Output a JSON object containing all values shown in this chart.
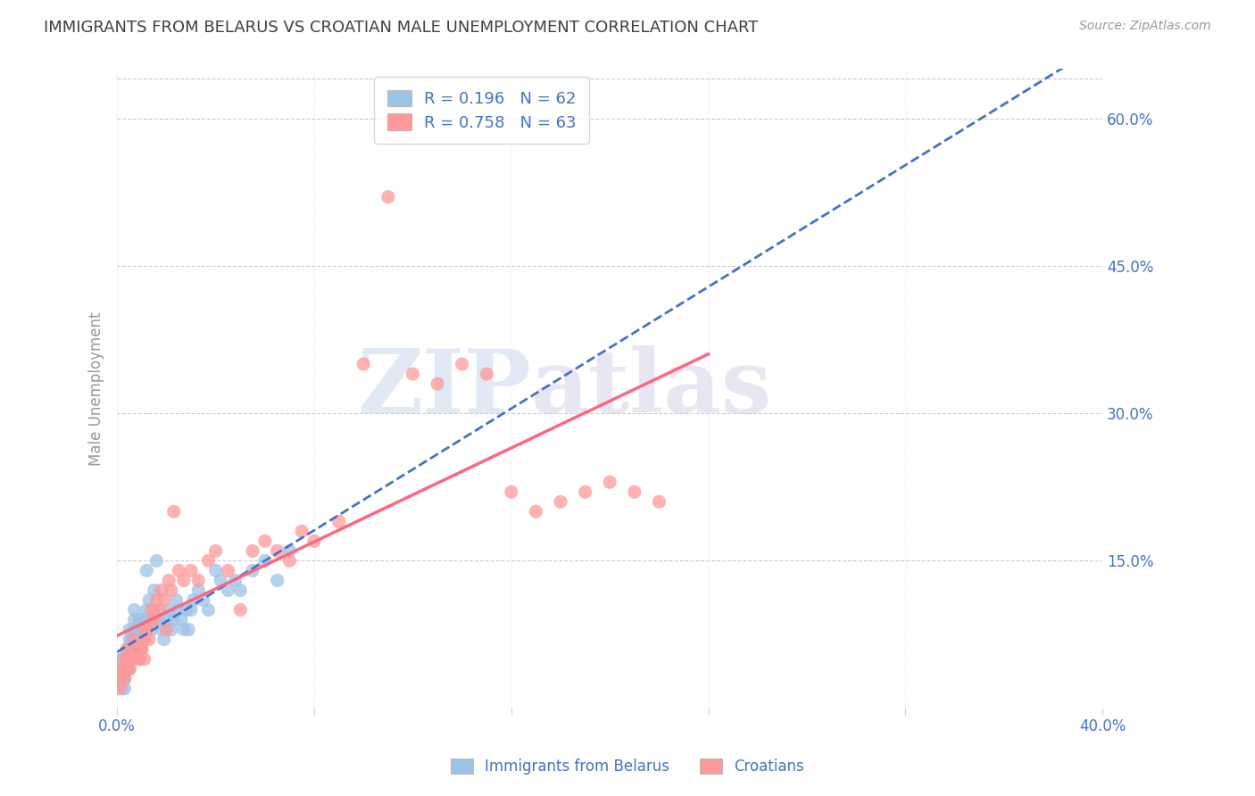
{
  "title": "IMMIGRANTS FROM BELARUS VS CROATIAN MALE UNEMPLOYMENT CORRELATION CHART",
  "source": "Source: ZipAtlas.com",
  "ylabel": "Male Unemployment",
  "x_min": 0.0,
  "x_max": 0.4,
  "y_min": 0.0,
  "y_max": 0.65,
  "x_tick_positions": [
    0.0,
    0.08,
    0.16,
    0.24,
    0.32,
    0.4
  ],
  "x_tick_labels": [
    "0.0%",
    "",
    "",
    "",
    "",
    "40.0%"
  ],
  "y_ticks_right": [
    0.15,
    0.3,
    0.45,
    0.6
  ],
  "y_tick_labels_right": [
    "15.0%",
    "30.0%",
    "45.0%",
    "60.0%"
  ],
  "legend_r1": "R = 0.196",
  "legend_n1": "N = 62",
  "legend_r2": "R = 0.758",
  "legend_n2": "N = 63",
  "blue_color": "#9DC3E6",
  "pink_color": "#FF9999",
  "blue_line_color": "#4472C4",
  "pink_line_color": "#FF6680",
  "grid_color": "#CCCCCC",
  "title_color": "#404040",
  "axis_label_color": "#4472C4",
  "background_color": "#FFFFFF",
  "watermark_zip": "ZIP",
  "watermark_atlas": "atlas",
  "blue_scatter_x": [
    0.002,
    0.003,
    0.003,
    0.004,
    0.004,
    0.005,
    0.005,
    0.005,
    0.006,
    0.006,
    0.007,
    0.007,
    0.007,
    0.008,
    0.008,
    0.009,
    0.009,
    0.01,
    0.01,
    0.011,
    0.012,
    0.012,
    0.013,
    0.013,
    0.014,
    0.015,
    0.015,
    0.016,
    0.017,
    0.018,
    0.019,
    0.02,
    0.021,
    0.022,
    0.023,
    0.024,
    0.025,
    0.026,
    0.027,
    0.028,
    0.029,
    0.03,
    0.031,
    0.033,
    0.035,
    0.037,
    0.04,
    0.042,
    0.045,
    0.048,
    0.05,
    0.055,
    0.06,
    0.065,
    0.07,
    0.001,
    0.001,
    0.002,
    0.002,
    0.003,
    0.003,
    0.004
  ],
  "blue_scatter_y": [
    0.05,
    0.03,
    0.04,
    0.06,
    0.04,
    0.05,
    0.07,
    0.08,
    0.06,
    0.07,
    0.08,
    0.09,
    0.1,
    0.07,
    0.08,
    0.09,
    0.06,
    0.08,
    0.07,
    0.09,
    0.14,
    0.1,
    0.11,
    0.09,
    0.08,
    0.1,
    0.12,
    0.15,
    0.09,
    0.08,
    0.07,
    0.09,
    0.1,
    0.08,
    0.09,
    0.11,
    0.1,
    0.09,
    0.08,
    0.1,
    0.08,
    0.1,
    0.11,
    0.12,
    0.11,
    0.1,
    0.14,
    0.13,
    0.12,
    0.13,
    0.12,
    0.14,
    0.15,
    0.13,
    0.16,
    0.03,
    0.04,
    0.02,
    0.05,
    0.02,
    0.03,
    0.04
  ],
  "pink_scatter_x": [
    0.002,
    0.003,
    0.004,
    0.005,
    0.006,
    0.007,
    0.008,
    0.009,
    0.01,
    0.011,
    0.012,
    0.013,
    0.014,
    0.015,
    0.016,
    0.017,
    0.018,
    0.019,
    0.02,
    0.021,
    0.022,
    0.023,
    0.025,
    0.027,
    0.03,
    0.033,
    0.037,
    0.04,
    0.045,
    0.05,
    0.055,
    0.06,
    0.065,
    0.07,
    0.075,
    0.08,
    0.09,
    0.1,
    0.11,
    0.12,
    0.13,
    0.14,
    0.15,
    0.16,
    0.17,
    0.18,
    0.19,
    0.2,
    0.21,
    0.22,
    0.001,
    0.001,
    0.002,
    0.003,
    0.004,
    0.005,
    0.006,
    0.007,
    0.008,
    0.009,
    0.01,
    0.011,
    0.012
  ],
  "pink_scatter_y": [
    0.04,
    0.05,
    0.06,
    0.04,
    0.05,
    0.07,
    0.06,
    0.05,
    0.06,
    0.05,
    0.08,
    0.07,
    0.1,
    0.09,
    0.11,
    0.1,
    0.12,
    0.11,
    0.08,
    0.13,
    0.12,
    0.2,
    0.14,
    0.13,
    0.14,
    0.13,
    0.15,
    0.16,
    0.14,
    0.1,
    0.16,
    0.17,
    0.16,
    0.15,
    0.18,
    0.17,
    0.19,
    0.35,
    0.52,
    0.34,
    0.33,
    0.35,
    0.34,
    0.22,
    0.2,
    0.21,
    0.22,
    0.23,
    0.22,
    0.21,
    0.02,
    0.03,
    0.04,
    0.03,
    0.05,
    0.04,
    0.06,
    0.05,
    0.06,
    0.05,
    0.06,
    0.07,
    0.08
  ]
}
